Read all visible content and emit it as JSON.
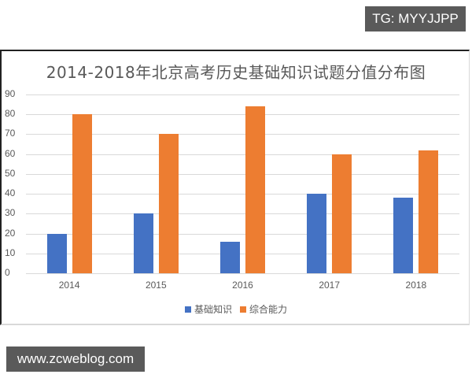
{
  "watermarks": {
    "top_right": "TG: MYYJJPP",
    "bottom_left": "www.zcweblog.com"
  },
  "colors": {
    "series_1": "#4472C4",
    "series_2": "#ED7D31",
    "gridline": "#D9D9D9",
    "text": "#595959",
    "badge_bg": "#5A5A5A"
  },
  "chart_data": {
    "type": "bar",
    "title": "2014-2018年北京高考历史基础知识试题分值分布图",
    "xlabel": "",
    "ylabel": "",
    "categories": [
      "2014",
      "2015",
      "2016",
      "2017",
      "2018"
    ],
    "series": [
      {
        "name": "基础知识",
        "color": "#4472C4",
        "values": [
          20,
          30,
          16,
          40,
          38
        ]
      },
      {
        "name": "综合能力",
        "color": "#ED7D31",
        "values": [
          80,
          70,
          84,
          60,
          62
        ]
      }
    ],
    "ylim": [
      0,
      90
    ],
    "yticks": [
      "0",
      "10",
      "20",
      "30",
      "40",
      "50",
      "60",
      "70",
      "80",
      "90"
    ],
    "grid": true,
    "legend_position": "bottom"
  }
}
